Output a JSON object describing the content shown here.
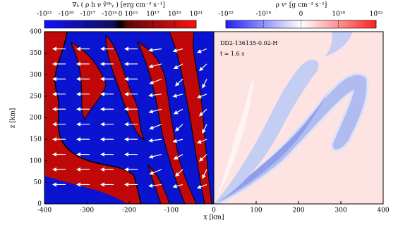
{
  "chart_data": [
    {
      "type": "heatmap",
      "title": "∇ₖ ( ρ h ν ṽ⁰ᵏᵧ ) [erg cm⁻³ s⁻¹]",
      "xlim": [
        -400,
        0
      ],
      "xticks": [
        -400,
        -300,
        -200,
        -100
      ],
      "ylim": [
        0,
        400
      ],
      "yticks": [
        0,
        50,
        100,
        150,
        200,
        250,
        300,
        350,
        400
      ],
      "xlabel": "x [km]",
      "ylabel": "z [km]",
      "colorbar": {
        "scale": "symlog",
        "lim": [
          -1e+21,
          1e+21
        ],
        "ticks": [
          {
            "value": -1e+21,
            "label": "-10²¹"
          },
          {
            "value": -1e+19,
            "label": "-10¹⁹"
          },
          {
            "value": -1e+17,
            "label": "-10¹⁷"
          },
          {
            "value": -1000000000000000.0,
            "label": "-10¹⁵"
          },
          0,
          {
            "value": 1000000000000000.0,
            "label": "10¹⁵"
          },
          {
            "value": 1e+17,
            "label": "10¹⁷"
          },
          {
            "value": 1e+19,
            "label": "10¹⁹"
          },
          {
            "value": 1e+21,
            "label": "10²¹"
          }
        ]
      }
    },
    {
      "type": "heatmap",
      "title": "ρ vʳ [g cm⁻³ s⁻¹]",
      "xlim": [
        0,
        400
      ],
      "xticks": [
        0,
        100,
        200,
        300,
        400
      ],
      "ylim": [
        0,
        400
      ],
      "annotations": [
        "DD2-136135-0.02-H",
        "t = 1.6 s"
      ],
      "colorbar": {
        "scale": "symlog",
        "lim": [
          -1e+22,
          1e+22
        ],
        "ticks": [
          {
            "value": -1e+22,
            "label": "-10²²"
          },
          {
            "value": -1e+18,
            "label": "-10¹⁸"
          },
          0,
          {
            "value": 1e+18,
            "label": "10¹⁸"
          },
          {
            "value": 1e+22,
            "label": "10²²"
          }
        ]
      }
    }
  ]
}
